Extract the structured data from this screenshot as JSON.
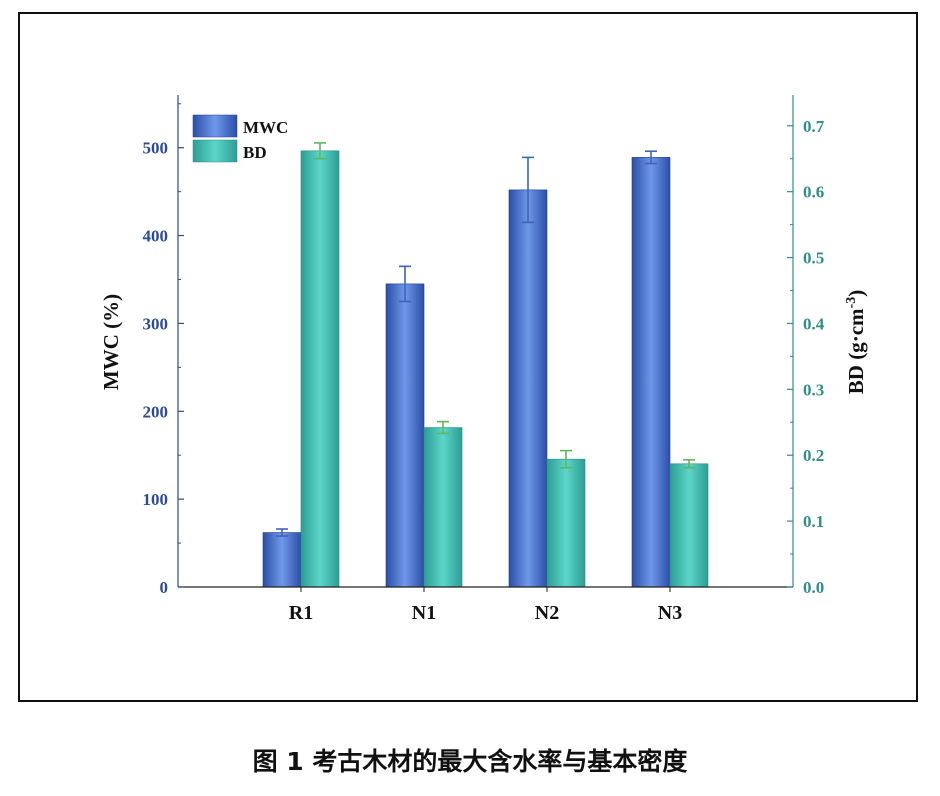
{
  "caption": "图 1  考古木材的最大含水率与基本密度",
  "colors": {
    "mwc": "#3b63c6",
    "bd": "#3fbfb3",
    "left_axis": "#2a4a9a",
    "right_axis": "#2f8f86",
    "mwc_error": "#3f63b8",
    "bd_error": "#5cb85c"
  },
  "chart_data": {
    "type": "bar",
    "categories": [
      "R1",
      "N1",
      "N2",
      "N3"
    ],
    "series": [
      {
        "name": "MWC",
        "axis": "left",
        "values": [
          62,
          345,
          452,
          489
        ],
        "errors": [
          4,
          20,
          37,
          7
        ]
      },
      {
        "name": "BD",
        "axis": "right",
        "values": [
          0.662,
          0.242,
          0.194,
          0.187
        ],
        "errors": [
          0.012,
          0.009,
          0.013,
          0.006
        ]
      }
    ],
    "ylabel": "MWC (%)",
    "y2label_base": "BD (g·cm",
    "y2label_sup": "-3",
    "y2label_end": ")",
    "ylim": [
      0,
      560
    ],
    "y2lim": [
      0,
      0.7467
    ],
    "yticks": [
      0,
      100,
      200,
      300,
      400,
      500
    ],
    "y2ticks": [
      "0.0",
      "0.1",
      "0.2",
      "0.3",
      "0.4",
      "0.5",
      "0.6",
      "0.7"
    ],
    "legend_position": "top-left",
    "grid": false
  }
}
